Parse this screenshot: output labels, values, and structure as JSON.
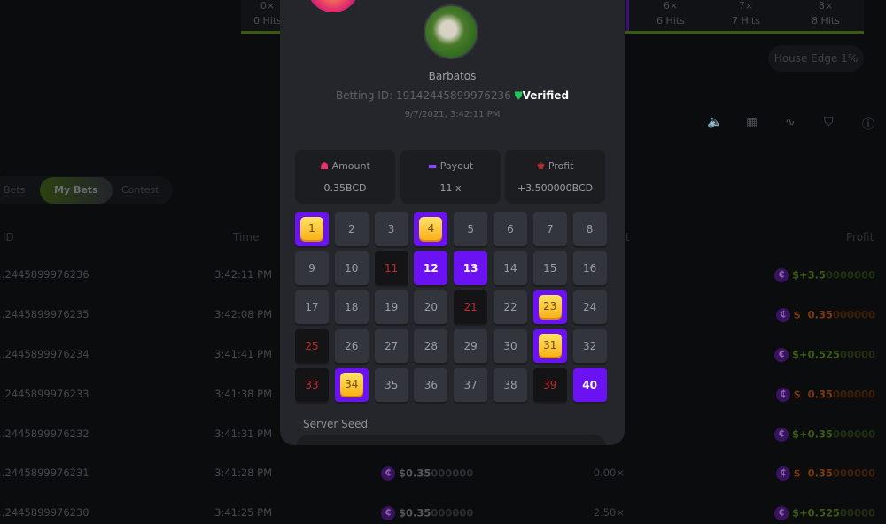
{
  "hits_bar": [
    {
      "mult": "0×",
      "label": "0 Hits"
    },
    {
      "mult": "6×",
      "label": "6 Hits"
    },
    {
      "mult": "7×",
      "label": "7 Hits"
    },
    {
      "mult": "8×",
      "label": "8 Hits"
    }
  ],
  "house_edge": "House Edge 1%",
  "toolbar_icons": [
    "sound-icon",
    "keyboard-icon",
    "chart-icon",
    "fairness-icon",
    "help-icon"
  ],
  "tabs": [
    "Bets",
    "My Bets",
    "Contest"
  ],
  "table": {
    "headers": {
      "id": "ID",
      "time": "Time",
      "payout": "t",
      "profit": "Profit"
    },
    "rows": [
      {
        "id": "…2445899976236",
        "time": "3:42:11 PM",
        "amount": "",
        "payout": "",
        "profit_main": "$+3.5",
        "profit_tail": "0000000",
        "win": true
      },
      {
        "id": "…2445899976235",
        "time": "3:42:08 PM",
        "amount": "",
        "payout": "",
        "profit_main": "$  0.35",
        "profit_tail": "000000",
        "win": false
      },
      {
        "id": "…2445899976234",
        "time": "3:41:41 PM",
        "amount": "",
        "payout": "",
        "profit_main": "$+0.525",
        "profit_tail": "00000",
        "win": true
      },
      {
        "id": "…2445899976233",
        "time": "3:41:38 PM",
        "amount": "",
        "payout": "",
        "profit_main": "$  0.35",
        "profit_tail": "000000",
        "win": false
      },
      {
        "id": "…2445899976232",
        "time": "3:41:31 PM",
        "amount": "",
        "payout": "",
        "profit_main": "$+0.35",
        "profit_tail": "000000",
        "win": true
      },
      {
        "id": "…2445899976231",
        "time": "3:41:28 PM",
        "amount_main": "$0.35",
        "amount_tail": "000000",
        "payout": "0.00×",
        "profit_main": "$  0.35",
        "profit_tail": "000000",
        "win": false
      },
      {
        "id": "…2445899976230",
        "time": "3:41:25 PM",
        "amount_main": "$0.35",
        "amount_tail": "000000",
        "payout": "2.50×",
        "profit_main": "$+0.525",
        "profit_tail": "00000",
        "win": true
      }
    ]
  },
  "modal": {
    "username": "Barbatos",
    "betting_id": "Betting ID: 19142445899976236",
    "verified": "Verified",
    "datetime": "9/7/2021, 3:42:11 PM",
    "amount": {
      "label": "Amount",
      "value": "0.35BCD"
    },
    "payout": {
      "label": "Payout",
      "value": "11 x"
    },
    "profit": {
      "label": "Profit",
      "value": "+3.500000BCD"
    },
    "hits": [
      1,
      4,
      23,
      31,
      34
    ],
    "picked_no_hit": [
      12,
      13,
      40
    ],
    "drawn_miss": [
      11,
      21,
      25,
      33,
      39
    ],
    "server_seed_label": "Server Seed",
    "colors": {
      "pick": "#6b12f2",
      "miss_text": "#c8262b",
      "verified": "#22c55e"
    }
  }
}
